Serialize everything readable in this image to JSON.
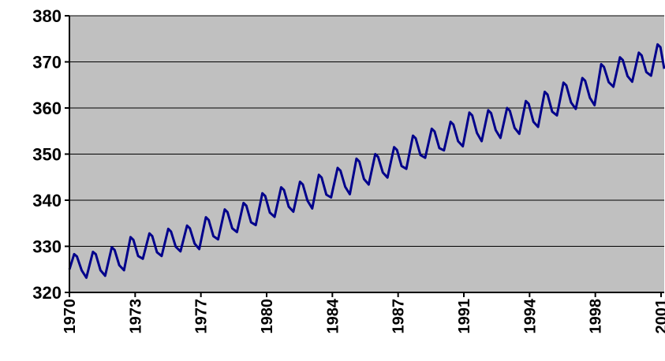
{
  "chart_data": {
    "type": "line",
    "title": "",
    "xlabel": "",
    "ylabel": "",
    "xlim": [
      1970,
      2001.6
    ],
    "ylim": [
      320,
      380
    ],
    "y_ticks": [
      320,
      330,
      340,
      350,
      360,
      370,
      380
    ],
    "x_tick_labels": [
      "1970",
      "1973",
      "1977",
      "1980",
      "1984",
      "1987",
      "1991",
      "1994",
      "1998",
      "2001"
    ],
    "grid": "horizontal",
    "legend": "none",
    "plot_background": "#c0c0c0",
    "series": [
      {
        "color": "#00008b",
        "x": [
          1970.0,
          1970.25,
          1970.4,
          1970.65,
          1970.9,
          1971.25,
          1971.4,
          1971.65,
          1971.9,
          1972.25,
          1972.4,
          1972.65,
          1972.9,
          1973.25,
          1973.4,
          1973.65,
          1973.9,
          1974.25,
          1974.4,
          1974.65,
          1974.9,
          1975.25,
          1975.4,
          1975.65,
          1975.9,
          1976.25,
          1976.4,
          1976.65,
          1976.9,
          1977.25,
          1977.4,
          1977.65,
          1977.9,
          1978.25,
          1978.4,
          1978.65,
          1978.9,
          1979.25,
          1979.4,
          1979.65,
          1979.9,
          1980.25,
          1980.4,
          1980.65,
          1980.9,
          1981.25,
          1981.4,
          1981.65,
          1981.9,
          1982.25,
          1982.4,
          1982.65,
          1982.9,
          1983.25,
          1983.4,
          1983.65,
          1983.9,
          1984.25,
          1984.4,
          1984.65,
          1984.9,
          1985.25,
          1985.4,
          1985.65,
          1985.9,
          1986.25,
          1986.4,
          1986.65,
          1986.9,
          1987.25,
          1987.4,
          1987.65,
          1987.9,
          1988.25,
          1988.4,
          1988.65,
          1988.9,
          1989.25,
          1989.4,
          1989.65,
          1989.9,
          1990.25,
          1990.4,
          1990.65,
          1990.9,
          1991.25,
          1991.4,
          1991.65,
          1991.9,
          1992.25,
          1992.4,
          1992.65,
          1992.9,
          1993.25,
          1993.4,
          1993.65,
          1993.9,
          1994.25,
          1994.4,
          1994.65,
          1994.9,
          1995.25,
          1995.4,
          1995.65,
          1995.9,
          1996.25,
          1996.4,
          1996.65,
          1996.9,
          1997.25,
          1997.4,
          1997.65,
          1997.9,
          1998.25,
          1998.4,
          1998.65,
          1998.9,
          1999.25,
          1999.4,
          1999.65,
          1999.9,
          2000.25,
          2000.4,
          2000.65,
          2000.9,
          2001.25,
          2001.4,
          2001.6
        ],
        "y": [
          325.0,
          328.3,
          327.8,
          324.8,
          323.2,
          328.8,
          328.3,
          324.8,
          323.6,
          329.8,
          329.2,
          325.9,
          324.8,
          332.0,
          331.4,
          327.9,
          327.3,
          332.8,
          332.2,
          328.7,
          327.9,
          333.8,
          333.2,
          329.9,
          328.9,
          334.5,
          333.9,
          330.6,
          329.4,
          336.3,
          335.7,
          332.2,
          331.5,
          338.0,
          337.4,
          333.9,
          333.1,
          339.4,
          338.8,
          335.2,
          334.6,
          341.5,
          340.9,
          337.3,
          336.4,
          342.8,
          342.2,
          338.6,
          337.5,
          344.0,
          343.4,
          339.9,
          338.2,
          345.5,
          344.9,
          341.2,
          340.6,
          347.0,
          346.4,
          342.9,
          341.3,
          349.0,
          348.4,
          344.6,
          343.4,
          350.0,
          349.4,
          346.0,
          344.9,
          351.5,
          350.9,
          347.4,
          346.8,
          354.0,
          353.4,
          349.8,
          349.2,
          355.5,
          354.9,
          351.3,
          350.8,
          357.0,
          356.4,
          352.8,
          351.7,
          359.0,
          358.4,
          354.6,
          352.8,
          359.5,
          358.9,
          355.2,
          353.5,
          360.0,
          359.4,
          355.7,
          354.4,
          361.5,
          360.9,
          357.0,
          355.9,
          363.5,
          362.9,
          359.2,
          358.4,
          365.5,
          364.9,
          361.2,
          359.8,
          366.5,
          365.9,
          362.2,
          360.6,
          369.5,
          368.9,
          365.6,
          364.6,
          371.0,
          370.4,
          366.9,
          365.7,
          372.0,
          371.4,
          367.8,
          367.0,
          373.8,
          373.2,
          368.5
        ]
      }
    ]
  }
}
